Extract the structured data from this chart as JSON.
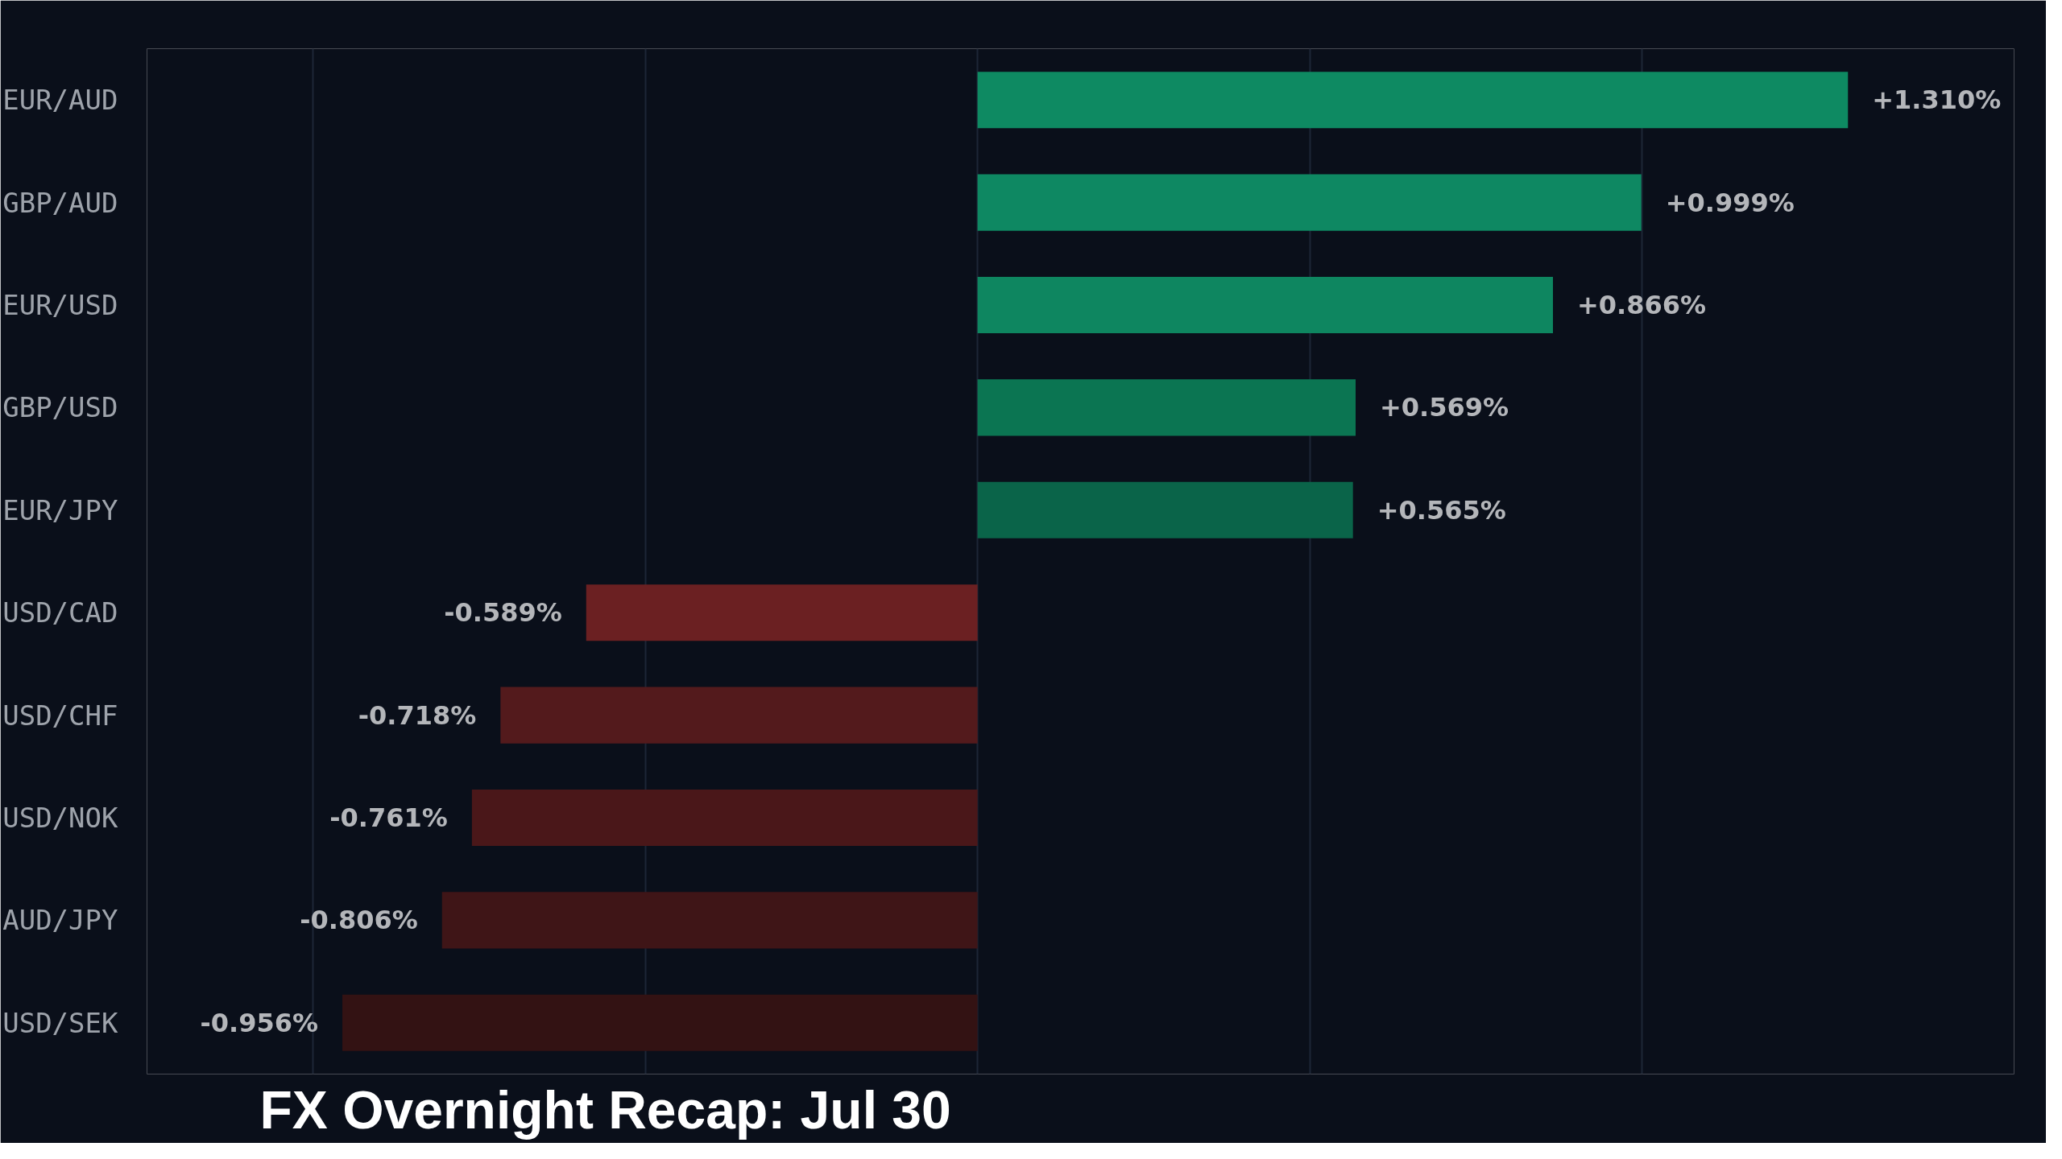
{
  "chart_data": {
    "type": "bar",
    "orientation": "horizontal",
    "title": "FX Overnight Recap: Jul 30",
    "categories": [
      "EUR/AUD",
      "GBP/AUD",
      "EUR/USD",
      "GBP/USD",
      "EUR/JPY",
      "USD/CAD",
      "USD/CHF",
      "USD/NOK",
      "AUD/JPY",
      "USD/SEK"
    ],
    "values": [
      1.31,
      0.999,
      0.866,
      0.569,
      0.565,
      -0.589,
      -0.718,
      -0.761,
      -0.806,
      -0.956
    ],
    "value_labels": [
      "+1.310%",
      "+0.999%",
      "+0.866%",
      "+0.569%",
      "+0.565%",
      "-0.589%",
      "-0.718%",
      "-0.761%",
      "-0.806%",
      "-0.956%"
    ],
    "colors": [
      "#0e8a62",
      "#0e8862",
      "#0e8660",
      "#0b7552",
      "#0a6449",
      "#6b2022",
      "#531a1c",
      "#4a1719",
      "#3f1517",
      "#331213"
    ],
    "xlim": [
      -1.25,
      1.56
    ],
    "xticks": [
      {
        "value": -1,
        "label": null
      },
      {
        "value": -0.5,
        "label": null
      },
      {
        "value": 0,
        "label": null
      },
      {
        "value": 0.5,
        "label": null
      },
      {
        "value": 1,
        "label": null
      }
    ],
    "grid": "x",
    "tick_labels": "y"
  }
}
